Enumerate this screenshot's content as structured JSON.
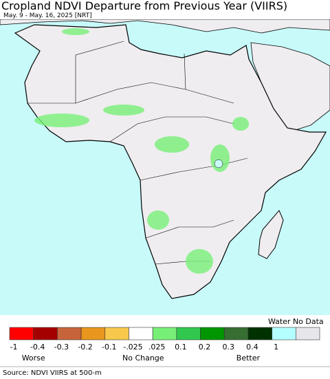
{
  "header": {
    "title": "Cropland NDVI Departure from Previous Year (VIIRS)",
    "subtitle": "May. 9 - May. 16, 2025 [NRT]"
  },
  "legend": {
    "colors": [
      "#ff0000",
      "#a50000",
      "#c8643c",
      "#e8961e",
      "#f7c84b",
      "#ffffff",
      "#78f078",
      "#32c850",
      "#009600",
      "#376e32",
      "#003200",
      "#b4ffff",
      "#e6e6eb"
    ],
    "ticks": [
      "-1",
      "-0.4",
      "-0.3",
      "-0.2",
      "-0.1",
      "-.025",
      ".025",
      "0.1",
      "0.2",
      "0.3",
      "0.4",
      "1"
    ],
    "water_no_data": "Water No Data",
    "words": [
      "Worse",
      "No Change",
      "Better"
    ]
  },
  "footer": {
    "source": "Source: NDVI VIIRS at 500-m"
  }
}
